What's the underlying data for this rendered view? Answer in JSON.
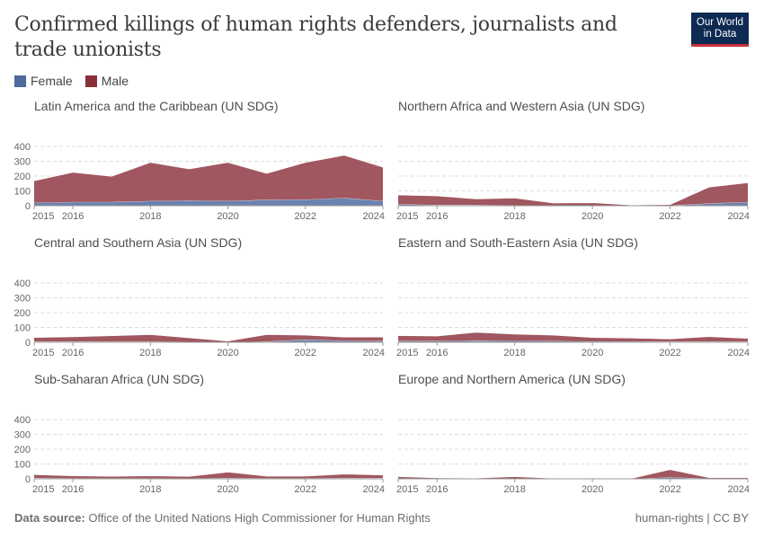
{
  "title": "Confirmed killings of human rights defenders, journalists and trade unionists",
  "logo": {
    "line1": "Our World",
    "line2": "in Data"
  },
  "legend": [
    {
      "label": "Female",
      "color": "#4c6a9c"
    },
    {
      "label": "Male",
      "color": "#883039"
    }
  ],
  "footer": {
    "source_label": "Data source:",
    "source": "Office of the United Nations High Commissioner for Human Rights",
    "license": "human-rights | CC BY"
  },
  "chart_data": {
    "type": "area",
    "stacked": true,
    "x": [
      2015,
      2016,
      2017,
      2018,
      2019,
      2020,
      2021,
      2022,
      2023,
      2024
    ],
    "x_ticks": [
      "2015",
      "2016",
      "2018",
      "2020",
      "2022",
      "2024"
    ],
    "y_ticks": [
      "0",
      "100",
      "200",
      "300",
      "400"
    ],
    "ylim": [
      0,
      400
    ],
    "grid": true,
    "legend_position": "top-left",
    "panels": [
      {
        "title": "Latin America and the Caribbean (UN SDG)",
        "series": [
          {
            "name": "Female",
            "values": [
              20,
              25,
              25,
              32,
              35,
              32,
              40,
              42,
              52,
              32
            ]
          },
          {
            "name": "Male",
            "values": [
              148,
              200,
              173,
              260,
              213,
              260,
              178,
              250,
              288,
              228
            ]
          }
        ]
      },
      {
        "title": "Northern Africa and Western Asia (UN SDG)",
        "series": [
          {
            "name": "Female",
            "values": [
              10,
              5,
              5,
              3,
              2,
              2,
              1,
              2,
              15,
              25
            ]
          },
          {
            "name": "Male",
            "values": [
              62,
              61,
              41,
              49,
              16,
              18,
              4,
              6,
              110,
              130
            ]
          }
        ]
      },
      {
        "title": "Central and Southern Asia (UN SDG)",
        "series": [
          {
            "name": "Female",
            "values": [
              5,
              5,
              5,
              5,
              3,
              1,
              5,
              18,
              10,
              8
            ]
          },
          {
            "name": "Male",
            "values": [
              27,
              32,
              39,
              47,
              27,
              7,
              47,
              30,
              25,
              27
            ]
          }
        ]
      },
      {
        "title": "Eastern and South-Eastern Asia (UN SDG)",
        "series": [
          {
            "name": "Female",
            "values": [
              8,
              8,
              12,
              10,
              8,
              6,
              6,
              5,
              5,
              5
            ]
          },
          {
            "name": "Male",
            "values": [
              37,
              34,
              55,
              45,
              40,
              26,
              22,
              17,
              33,
              21
            ]
          }
        ]
      },
      {
        "title": "Sub-Saharan Africa (UN SDG)",
        "series": [
          {
            "name": "Female",
            "values": [
              5,
              4,
              4,
              4,
              3,
              5,
              4,
              4,
              5,
              5
            ]
          },
          {
            "name": "Male",
            "values": [
              23,
              16,
              13,
              16,
              13,
              40,
              14,
              14,
              27,
              20
            ]
          }
        ]
      },
      {
        "title": "Europe and Northern America (UN SDG)",
        "series": [
          {
            "name": "Female",
            "values": [
              3,
              2,
              1,
              2,
              1,
              1,
              0,
              10,
              2,
              2
            ]
          },
          {
            "name": "Male",
            "values": [
              12,
              4,
              4,
              13,
              2,
              2,
              2,
              52,
              6,
              6
            ]
          }
        ]
      }
    ]
  }
}
